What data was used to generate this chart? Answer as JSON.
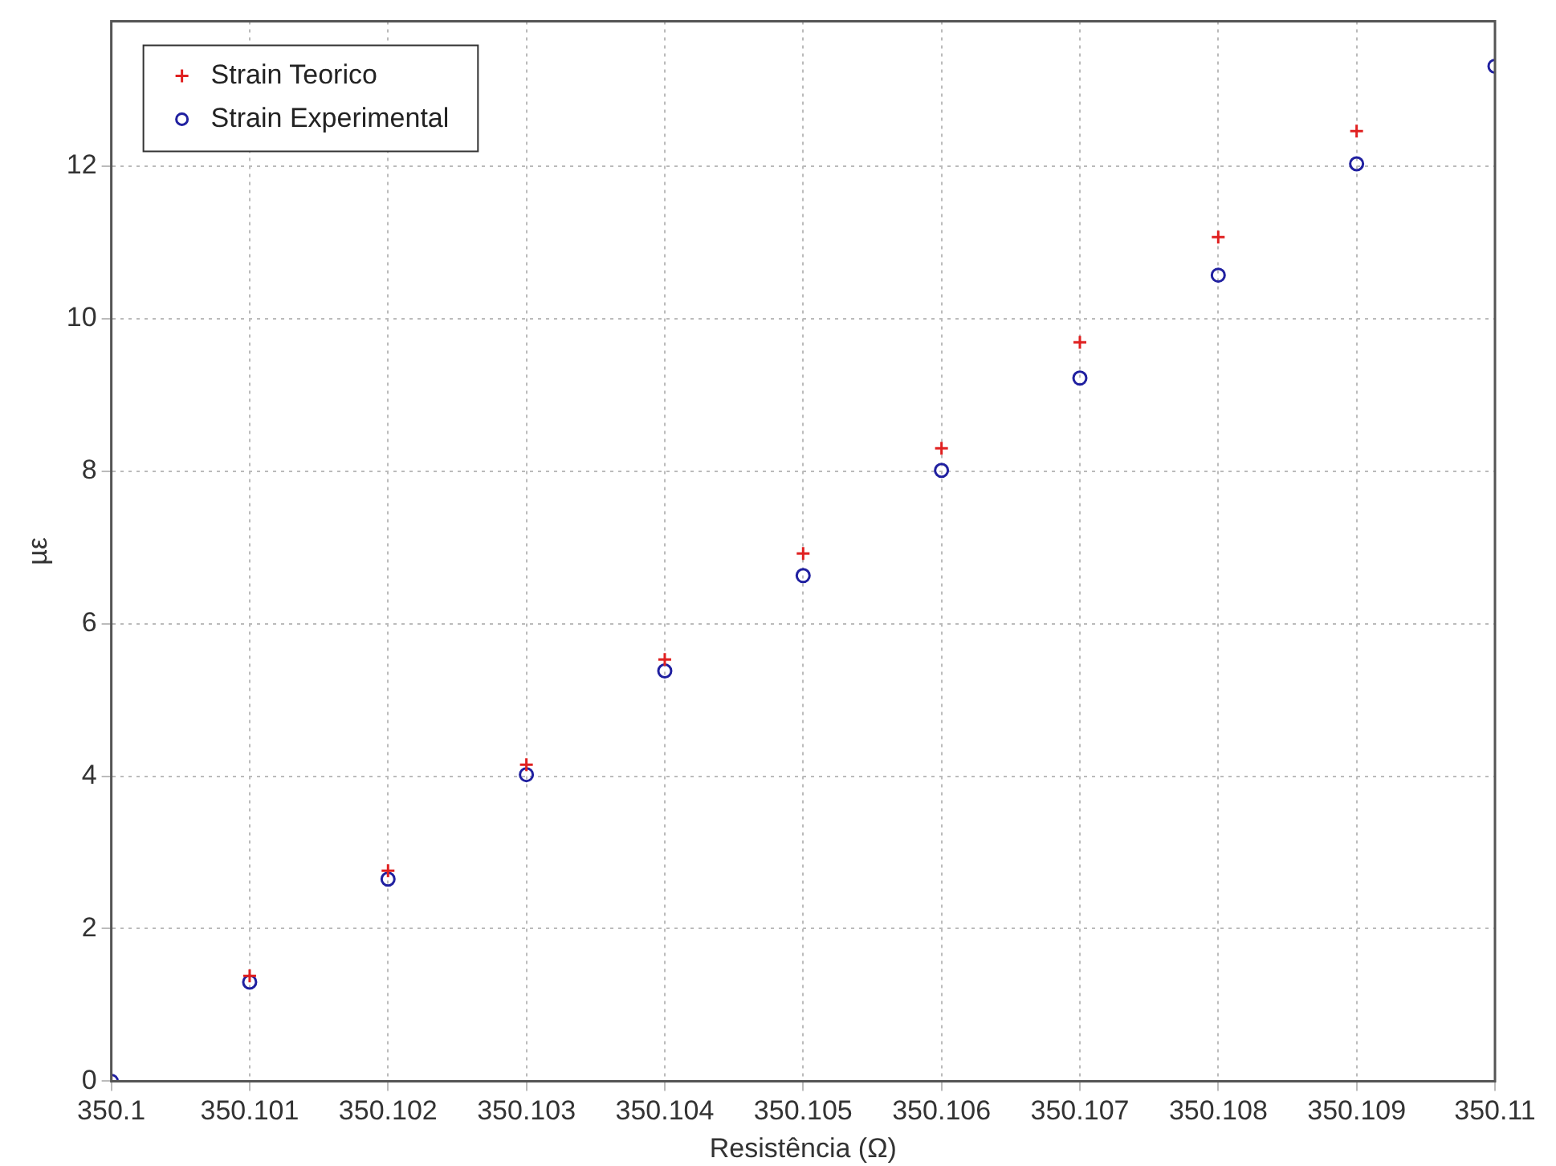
{
  "chart_data": {
    "type": "scatter",
    "xlabel": "Resistência (Ω)",
    "ylabel": "µε",
    "x": [
      350.1,
      350.101,
      350.102,
      350.103,
      350.104,
      350.105,
      350.106,
      350.107,
      350.108,
      350.109,
      350.11
    ],
    "series": [
      {
        "name": "Strain Teorico",
        "color": "#e02020",
        "marker": "cross",
        "values": [
          0,
          1.38,
          2.76,
          4.15,
          5.53,
          6.92,
          8.3,
          9.69,
          11.07,
          12.46,
          null
        ]
      },
      {
        "name": "Strain Experimental",
        "color": "#2020a0",
        "marker": "circle",
        "values": [
          0,
          1.3,
          2.65,
          4.02,
          5.38,
          6.63,
          8.01,
          9.22,
          10.57,
          12.03,
          13.31
        ]
      }
    ],
    "xlim": [
      350.1,
      350.11
    ],
    "xticks": [
      350.1,
      350.101,
      350.102,
      350.103,
      350.104,
      350.105,
      350.106,
      350.107,
      350.108,
      350.109,
      350.11
    ],
    "ylim": [
      0,
      13.9
    ],
    "yticks": [
      0,
      2,
      4,
      6,
      8,
      10,
      12
    ],
    "grid": true,
    "legend": "top left"
  }
}
